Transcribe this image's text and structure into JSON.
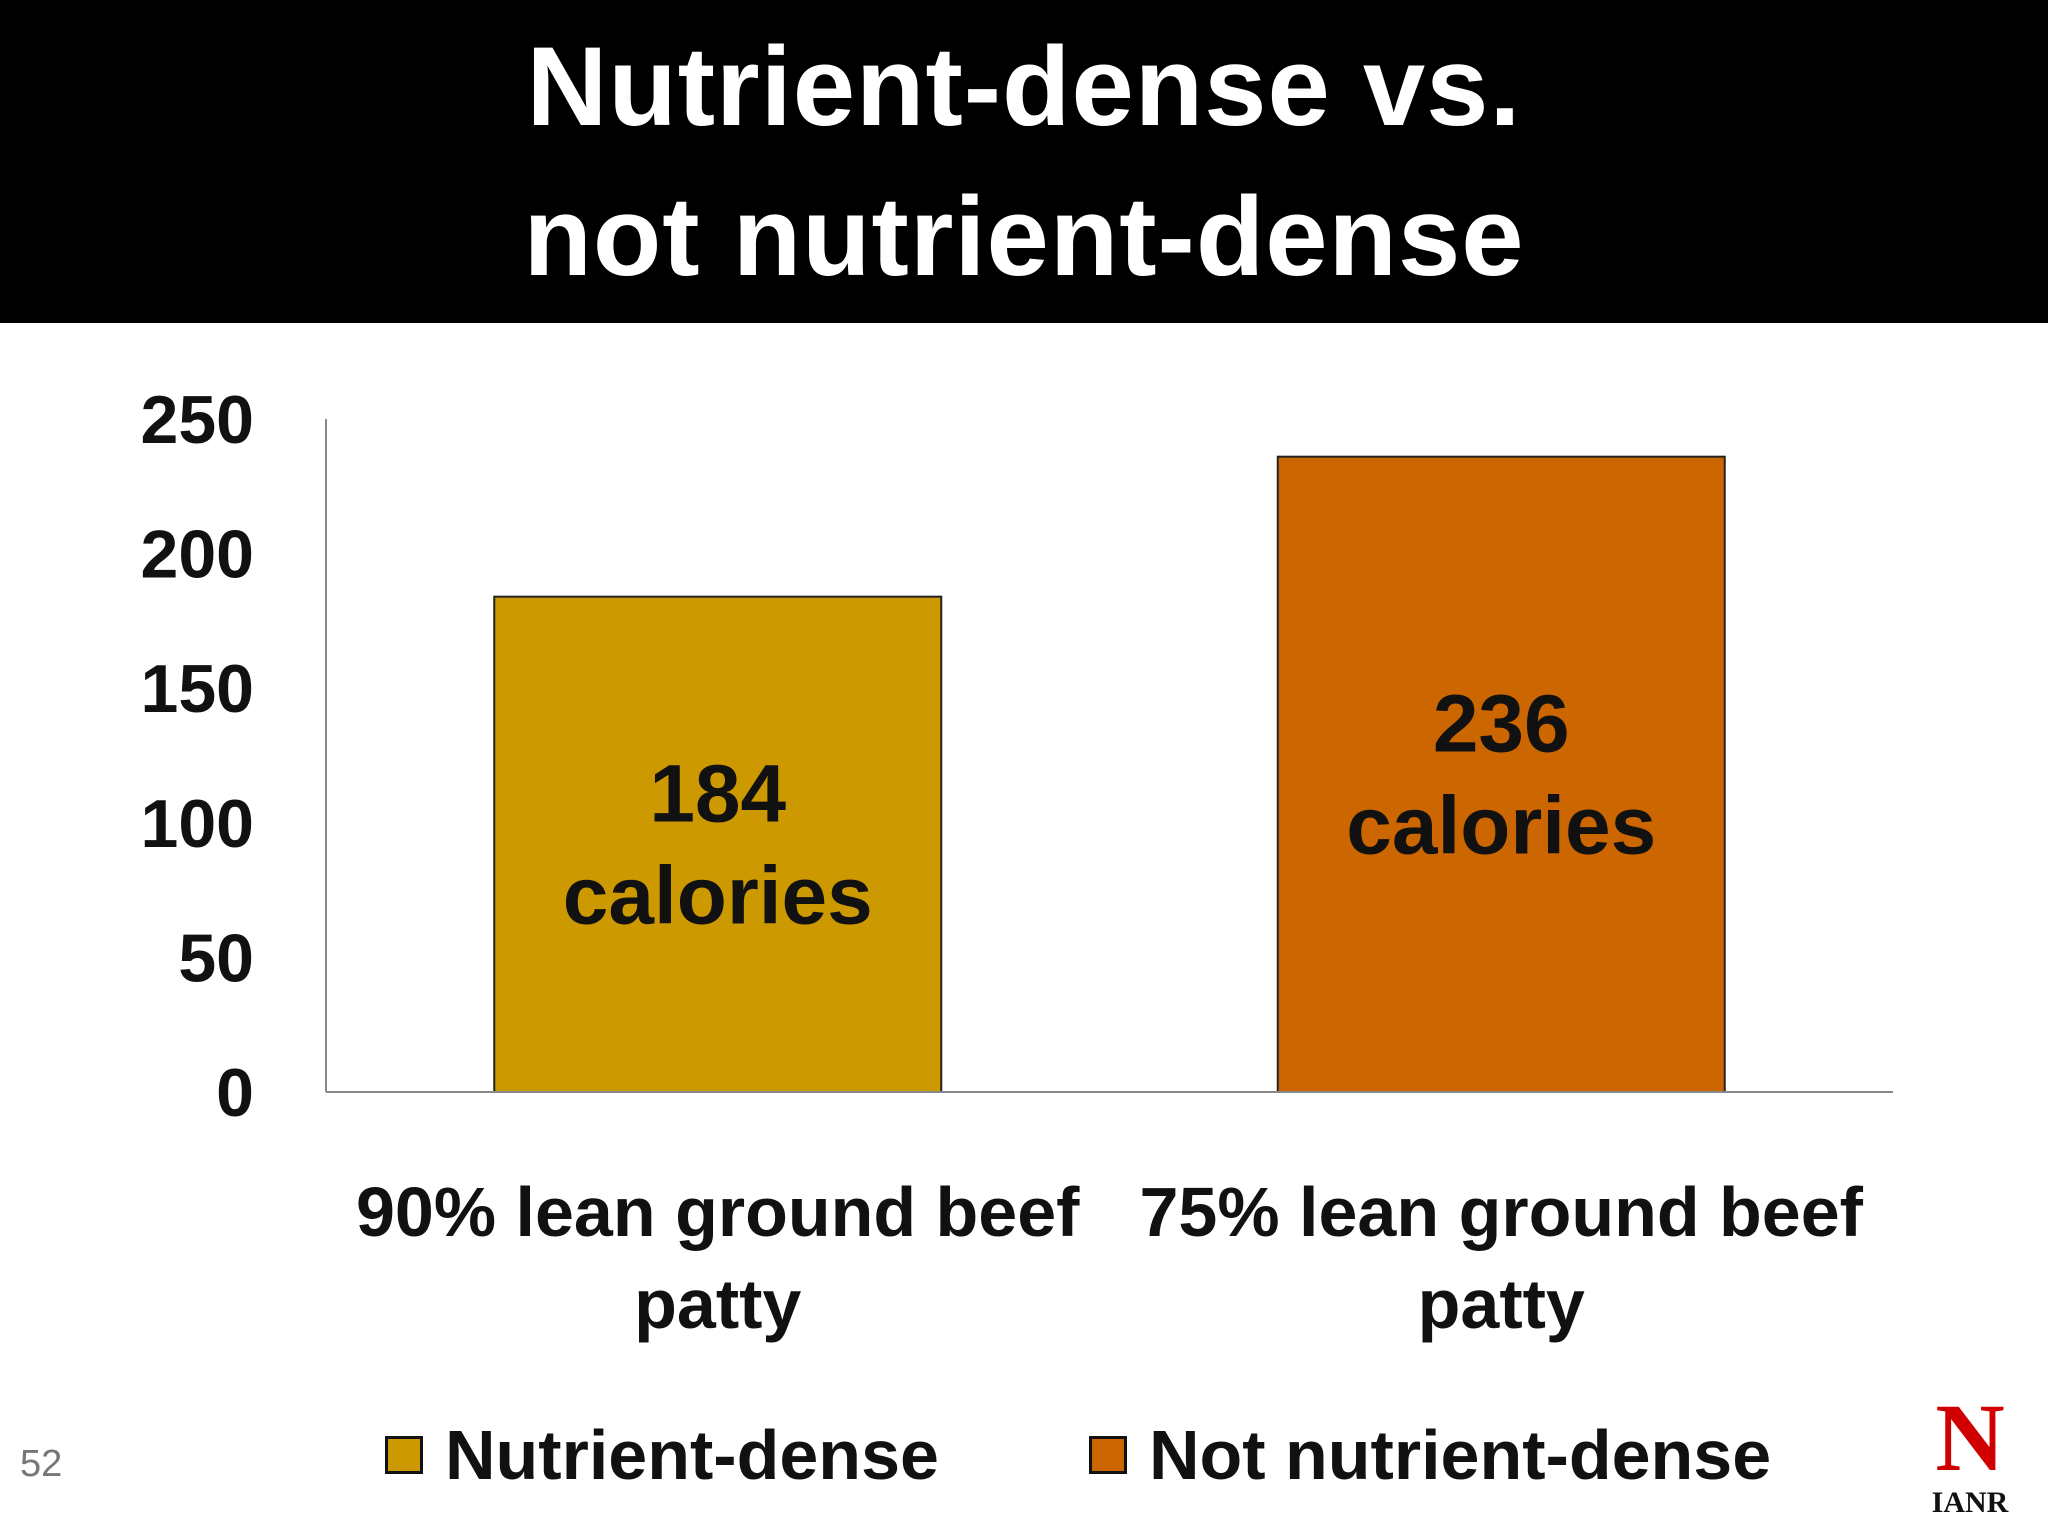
{
  "header": {
    "title_line1": "Nutrient-dense vs.",
    "title_line2": "not nutrient-dense",
    "background": "#000000",
    "color": "#ffffff"
  },
  "chart_data": {
    "type": "bar",
    "categories": [
      [
        "90% lean ground beef",
        "patty"
      ],
      [
        "75% lean ground beef",
        "patty"
      ]
    ],
    "series": [
      {
        "name": "Nutrient-dense",
        "values": [
          184,
          null
        ],
        "color": "#CC9900"
      },
      {
        "name": "Not nutrient-dense",
        "values": [
          null,
          236
        ],
        "color": "#CC6600"
      }
    ],
    "data_labels": [
      [
        "184",
        "calories"
      ],
      [
        "236",
        "calories"
      ]
    ],
    "yticks": [
      "0",
      "50",
      "100",
      "150",
      "200",
      "250"
    ],
    "ylim": [
      0,
      250
    ],
    "grid": false,
    "legend_position": "bottom",
    "title": "",
    "xlabel": "",
    "ylabel": ""
  },
  "footer": {
    "slide_number": "52",
    "logo_letter": "N",
    "logo_text": "IANR",
    "logo_color": "#D00000"
  }
}
